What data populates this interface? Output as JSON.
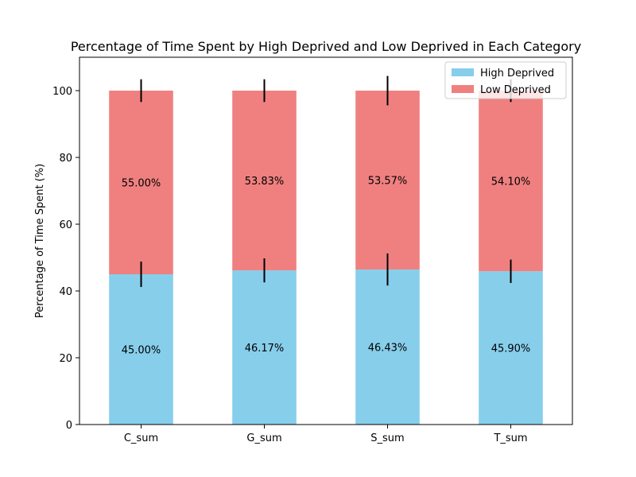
{
  "chart_data": {
    "type": "bar",
    "stacked": true,
    "title": "Percentage of Time Spent by High Deprived and Low Deprived in Each Category",
    "xlabel": "",
    "ylabel": "Percentage of Time Spent (%)",
    "ylim": [
      0,
      110
    ],
    "yticks": [
      0,
      20,
      40,
      60,
      80,
      100
    ],
    "ytick_labels": [
      "0",
      "20",
      "40",
      "60",
      "80",
      "100"
    ],
    "grid": false,
    "legend_position": "top-right",
    "categories": [
      "C_sum",
      "G_sum",
      "S_sum",
      "T_sum"
    ],
    "series": [
      {
        "name": "High Deprived",
        "color": "#87ceeb",
        "values": [
          45.0,
          46.17,
          46.43,
          45.9
        ],
        "value_labels": [
          "45.00%",
          "46.17%",
          "46.43%",
          "45.90%"
        ],
        "errors": [
          3.8,
          3.6,
          4.8,
          3.5
        ]
      },
      {
        "name": "Low Deprived",
        "color": "#f08080",
        "values": [
          55.0,
          53.83,
          53.57,
          54.1
        ],
        "value_labels": [
          "55.00%",
          "53.83%",
          "53.57%",
          "54.10%"
        ],
        "errors": [
          3.4,
          3.4,
          4.4,
          3.4
        ]
      }
    ]
  }
}
